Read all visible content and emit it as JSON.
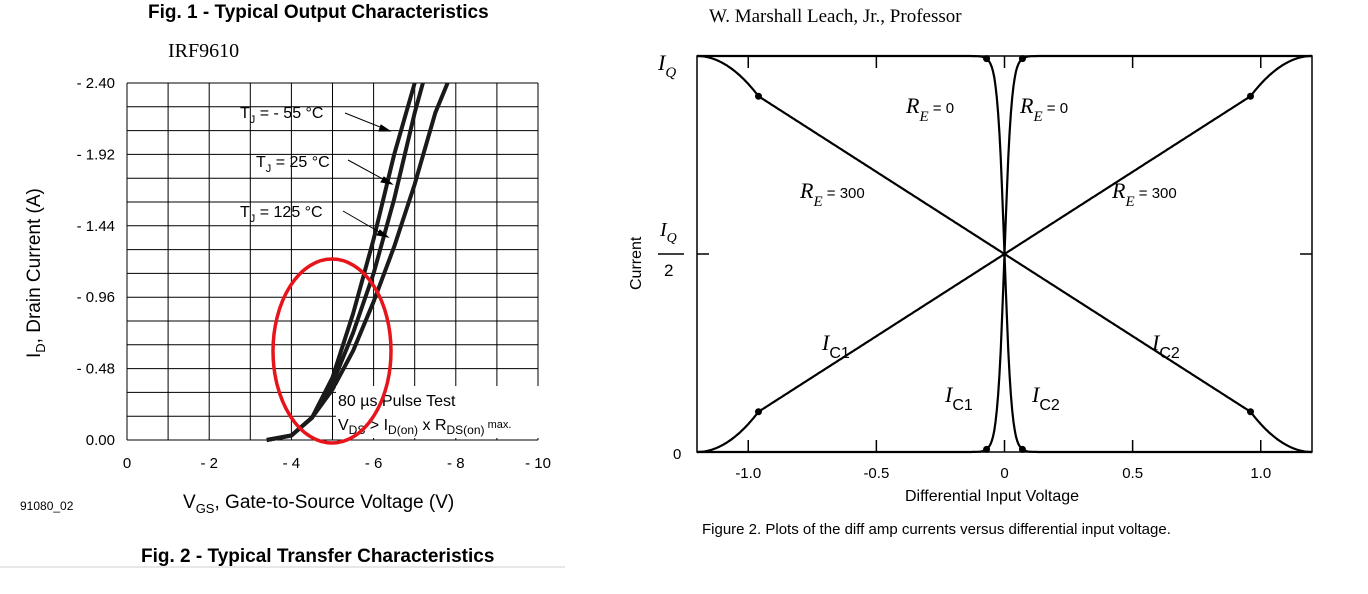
{
  "left_figure": {
    "header": "Fig. 1 - Typical Output Characteristics",
    "part": "IRF9610",
    "ylabel_main": "I",
    "ylabel_sub": "D",
    "ylabel_rest": ", Drain Current (A)",
    "xlabel_main": "V",
    "xlabel_sub": "GS",
    "xlabel_rest": ", Gate-to-Source Voltage (V)",
    "footer_code": "91080_02",
    "footer_caption": "Fig. 2 - Typical Transfer Characteristics",
    "note_line1": "80 µs Pulse Test",
    "note_v": "V",
    "note_ds": "DS",
    "note_gt": " > I",
    "note_don": "D(on)",
    "note_x": " x R",
    "note_dson": "DS(on)",
    "note_max": " max.",
    "highlight_color": "#e8141c"
  },
  "right_figure": {
    "header": "W. Marshall Leach, Jr., Professor",
    "ylabel": "Current",
    "iq_label": "I",
    "iq_sub": "Q",
    "iq_half_top": "I",
    "iq_half_sub": "Q",
    "iq_half_bottom": "2",
    "zero_label": "0",
    "xlabel": "Differential Input Voltage",
    "caption": "Figure 2. Plots of the diff amp currents versus differential input voltage.",
    "labels": {
      "re0_left": "R",
      "re0_left_sub": "E",
      "re0_left_val": " = 0",
      "re0_right": "R",
      "re0_right_sub": "E",
      "re0_right_val": " = 0",
      "re300_left": "R",
      "re300_left_sub": "E",
      "re300_left_val": " = 300",
      "re300_right": "R",
      "re300_right_sub": "E",
      "re300_right_val": " = 300",
      "ic1_outer": "I",
      "ic1_outer_sub": "C1",
      "ic2_outer": "I",
      "ic2_outer_sub": "C2",
      "ic1_inner": "I",
      "ic1_inner_sub": "C1",
      "ic2_inner": "I",
      "ic2_inner_sub": "C2"
    }
  },
  "chart_data": [
    {
      "type": "line",
      "title": "Fig. 2 - Typical Transfer Characteristics",
      "xlabel": "VGS, Gate-to-Source Voltage (V)",
      "ylabel": "ID, Drain Current (A)",
      "xlim": [
        0,
        -10
      ],
      "ylim": [
        0,
        2.4
      ],
      "x_ticks": [
        "0",
        "- 2",
        "- 4",
        "- 6",
        "- 8",
        "- 10"
      ],
      "y_ticks": [
        "0.00",
        "- 0.48",
        "- 0.96",
        "- 1.44",
        "- 1.92",
        "- 2.40"
      ],
      "grid": true,
      "series": [
        {
          "name": "TJ = - 55 °C",
          "label_t": "T",
          "label_j": "J",
          "label_rest": " = - 55 °C",
          "x": [
            -3.4,
            -4.0,
            -4.5,
            -5.0,
            -5.5,
            -6.0,
            -6.5,
            -7.0
          ],
          "y": [
            0.0,
            0.03,
            0.15,
            0.42,
            0.85,
            1.35,
            1.92,
            2.55
          ]
        },
        {
          "name": "TJ = 25 °C",
          "label_t": "T",
          "label_j": "J",
          "label_rest": " = 25 °C",
          "x": [
            -3.4,
            -4.0,
            -4.5,
            -5.0,
            -5.5,
            -6.0,
            -6.5,
            -7.0,
            -7.2
          ],
          "y": [
            0.0,
            0.03,
            0.15,
            0.38,
            0.72,
            1.12,
            1.62,
            2.2,
            2.48
          ]
        },
        {
          "name": "TJ = 125 °C",
          "label_t": "T",
          "label_j": "J",
          "label_rest": " = 125 °C",
          "x": [
            -3.4,
            -4.0,
            -4.5,
            -5.0,
            -5.5,
            -6.0,
            -6.5,
            -7.0,
            -7.5,
            -7.8
          ],
          "y": [
            0.0,
            0.03,
            0.15,
            0.34,
            0.6,
            0.93,
            1.3,
            1.72,
            2.2,
            2.5
          ]
        }
      ],
      "annotation": "80 µs Pulse Test VDS > ID(on) x RDS(on) max."
    },
    {
      "type": "line",
      "title": "",
      "xlabel": "Differential Input Voltage",
      "ylabel": "Current",
      "xlim": [
        -1.2,
        1.2
      ],
      "x_ticks": [
        "-1.0",
        "-0.5",
        "0",
        "0.5",
        "1.0"
      ],
      "y_ticks": [
        "0",
        "IQ/2",
        "IQ"
      ],
      "series": [
        {
          "name": "IC1 (RE = 0)",
          "x": [
            -1.2,
            -0.1,
            -0.05,
            0,
            0.05,
            0.1,
            1.2
          ],
          "y": [
            0.0,
            0.02,
            0.13,
            0.5,
            0.87,
            0.98,
            1.0
          ]
        },
        {
          "name": "IC2 (RE = 0)",
          "x": [
            -1.2,
            -0.1,
            -0.05,
            0,
            0.05,
            0.1,
            1.2
          ],
          "y": [
            1.0,
            0.98,
            0.87,
            0.5,
            0.13,
            0.02,
            0.0
          ]
        },
        {
          "name": "IC1 (RE = 300)",
          "x": [
            -1.2,
            -0.96,
            -0.5,
            0,
            0.5,
            0.96,
            1.2
          ],
          "y": [
            0.0,
            0.1,
            0.3,
            0.5,
            0.7,
            0.9,
            1.0
          ]
        },
        {
          "name": "IC2 (RE = 300)",
          "x": [
            -1.2,
            -0.96,
            -0.5,
            0,
            0.5,
            0.96,
            1.2
          ],
          "y": [
            1.0,
            0.9,
            0.7,
            0.5,
            0.3,
            0.1,
            0.0
          ]
        }
      ],
      "markers_x": [
        -0.96,
        -0.07,
        0.07,
        0.96
      ]
    }
  ]
}
